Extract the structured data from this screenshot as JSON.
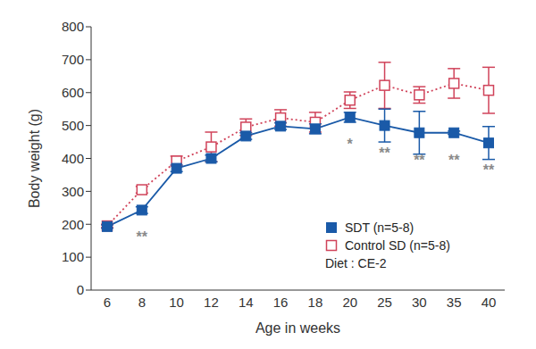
{
  "chart_data": {
    "type": "line",
    "categories": [
      "6",
      "8",
      "10",
      "12",
      "14",
      "16",
      "18",
      "20",
      "25",
      "30",
      "35",
      "40"
    ],
    "x_label": "Age in weeks",
    "y_label": "Body weight (g)",
    "ylim": [
      0,
      800
    ],
    "yticks": [
      0,
      100,
      200,
      300,
      400,
      500,
      600,
      700,
      800
    ],
    "grid": false,
    "legend": "right",
    "annotations": [
      "Diet : CE-2"
    ],
    "series": [
      {
        "name": "SDT (n=5-8)",
        "color": "#1a5aa8",
        "marker": "square",
        "line_style": "solid",
        "values": [
          193,
          243,
          370,
          400,
          468,
          498,
          490,
          525,
          500,
          478,
          478,
          447
        ],
        "error": [
          5,
          10,
          10,
          10,
          10,
          10,
          15,
          15,
          50,
          65,
          5,
          50
        ],
        "significance": [
          null,
          "**",
          null,
          null,
          null,
          null,
          null,
          "*",
          "**",
          "**",
          "**",
          "**"
        ]
      },
      {
        "name": "Control SD (n=5-8)",
        "color": "#d0435a",
        "marker": "square-open",
        "line_style": "dotted",
        "values": [
          195,
          305,
          392,
          435,
          495,
          523,
          510,
          577,
          622,
          593,
          628,
          607
        ],
        "error": [
          5,
          10,
          15,
          45,
          25,
          25,
          30,
          25,
          70,
          25,
          45,
          70
        ]
      }
    ]
  }
}
